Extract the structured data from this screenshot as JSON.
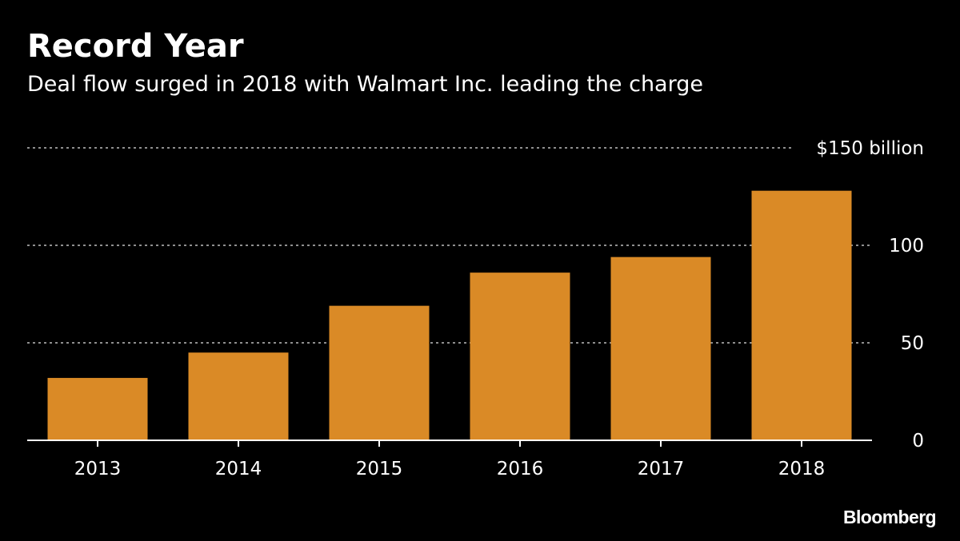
{
  "brand": "Bloomberg",
  "colors": {
    "background": "#000000",
    "bar": "#DA8A26",
    "text": "#ffffff",
    "gridline": "#8f8f8f"
  },
  "chart_data": {
    "type": "bar",
    "title": "Record Year",
    "subtitle": "Deal flow surged in 2018 with Walmart Inc. leading the charge",
    "xlabel": "",
    "ylabel": "",
    "categories": [
      "2013",
      "2014",
      "2015",
      "2016",
      "2017",
      "2018"
    ],
    "values": [
      32,
      45,
      69,
      86,
      94,
      128
    ],
    "ylim": [
      0,
      150
    ],
    "y_ticks": [
      0,
      50,
      100,
      150
    ],
    "y_tick_labels": [
      "0",
      "50",
      "100",
      "$150 billion"
    ],
    "grid": true,
    "legend": "none"
  }
}
